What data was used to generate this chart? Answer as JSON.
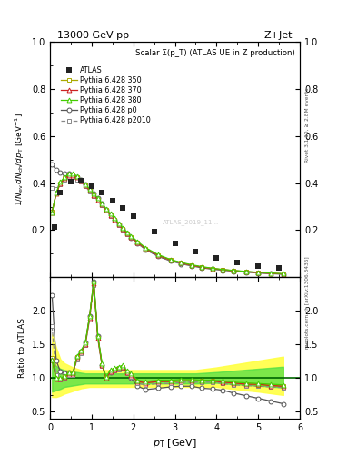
{
  "title_top": "13000 GeV pp",
  "title_right": "Z+Jet",
  "plot_title": "Scalar Σ(p_T) (ATLAS UE in Z production)",
  "rivet_label": "Rivet 3.1.10, ≥ 2.8M events",
  "mcplots_label": "mcplots.cern.ch [arXiv:1306.3436]",
  "xlim": [
    0,
    6
  ],
  "ylim_main": [
    0.0,
    1.0
  ],
  "ylim_ratio": [
    0.4,
    2.5
  ],
  "yticks_main": [
    0.2,
    0.4,
    0.6,
    0.8,
    1.0
  ],
  "yticks_ratio": [
    0.5,
    1.0,
    1.5,
    2.0
  ],
  "pt_atlas": [
    0.1,
    0.25,
    0.5,
    0.75,
    1.0,
    1.25,
    1.5,
    1.75,
    2.0,
    2.5,
    3.0,
    3.5,
    4.0,
    4.5,
    5.0,
    5.5
  ],
  "val_atlas": [
    0.215,
    0.36,
    0.405,
    0.41,
    0.385,
    0.36,
    0.325,
    0.295,
    0.258,
    0.195,
    0.145,
    0.108,
    0.082,
    0.062,
    0.048,
    0.038
  ],
  "pt_mc": [
    0.05,
    0.15,
    0.25,
    0.35,
    0.45,
    0.55,
    0.65,
    0.75,
    0.85,
    0.95,
    1.05,
    1.15,
    1.25,
    1.35,
    1.45,
    1.55,
    1.65,
    1.75,
    1.85,
    1.95,
    2.1,
    2.3,
    2.6,
    2.9,
    3.15,
    3.4,
    3.65,
    3.9,
    4.15,
    4.4,
    4.7,
    5.0,
    5.3,
    5.6
  ],
  "val_350": [
    0.28,
    0.355,
    0.4,
    0.42,
    0.435,
    0.435,
    0.425,
    0.41,
    0.39,
    0.37,
    0.35,
    0.33,
    0.31,
    0.285,
    0.265,
    0.245,
    0.225,
    0.205,
    0.187,
    0.17,
    0.148,
    0.122,
    0.093,
    0.073,
    0.061,
    0.051,
    0.043,
    0.037,
    0.032,
    0.028,
    0.024,
    0.02,
    0.017,
    0.014
  ],
  "val_370": [
    0.275,
    0.355,
    0.4,
    0.42,
    0.435,
    0.435,
    0.425,
    0.41,
    0.39,
    0.37,
    0.35,
    0.33,
    0.31,
    0.285,
    0.265,
    0.245,
    0.225,
    0.205,
    0.187,
    0.17,
    0.148,
    0.122,
    0.093,
    0.073,
    0.061,
    0.051,
    0.043,
    0.037,
    0.032,
    0.028,
    0.024,
    0.02,
    0.017,
    0.014
  ],
  "val_380": [
    0.275,
    0.36,
    0.405,
    0.425,
    0.44,
    0.44,
    0.43,
    0.415,
    0.395,
    0.375,
    0.355,
    0.335,
    0.315,
    0.29,
    0.27,
    0.25,
    0.23,
    0.21,
    0.192,
    0.175,
    0.152,
    0.125,
    0.096,
    0.075,
    0.063,
    0.053,
    0.045,
    0.038,
    0.033,
    0.029,
    0.025,
    0.021,
    0.018,
    0.015
  ],
  "val_p0": [
    0.48,
    0.455,
    0.445,
    0.44,
    0.44,
    0.435,
    0.425,
    0.415,
    0.395,
    0.375,
    0.355,
    0.335,
    0.312,
    0.288,
    0.266,
    0.245,
    0.224,
    0.204,
    0.185,
    0.167,
    0.144,
    0.117,
    0.088,
    0.069,
    0.057,
    0.048,
    0.04,
    0.034,
    0.03,
    0.026,
    0.022,
    0.018,
    0.015,
    0.013
  ],
  "val_p2010": [
    0.38,
    0.375,
    0.395,
    0.415,
    0.425,
    0.425,
    0.415,
    0.405,
    0.385,
    0.365,
    0.346,
    0.326,
    0.305,
    0.282,
    0.261,
    0.241,
    0.221,
    0.202,
    0.183,
    0.166,
    0.144,
    0.118,
    0.09,
    0.071,
    0.059,
    0.05,
    0.042,
    0.036,
    0.031,
    0.027,
    0.023,
    0.019,
    0.016,
    0.014
  ],
  "ratio_350": [
    1.3,
    0.99,
    0.99,
    1.02,
    1.07,
    1.07,
    1.31,
    1.39,
    1.51,
    1.9,
    2.41,
    1.6,
    1.2,
    1.0,
    1.1,
    1.13,
    1.15,
    1.17,
    1.09,
    1.05,
    0.95,
    0.93,
    0.95,
    0.95,
    0.96,
    0.96,
    0.96,
    0.96,
    0.94,
    0.92,
    0.91,
    0.9,
    0.89,
    0.88
  ],
  "ratio_370": [
    1.28,
    0.99,
    0.99,
    1.02,
    1.07,
    1.07,
    1.31,
    1.39,
    1.51,
    1.9,
    2.41,
    1.6,
    1.2,
    1.0,
    1.1,
    1.13,
    1.15,
    1.17,
    1.09,
    1.05,
    0.95,
    0.93,
    0.95,
    0.95,
    0.96,
    0.96,
    0.96,
    0.96,
    0.94,
    0.93,
    0.91,
    0.91,
    0.89,
    0.88
  ],
  "ratio_380": [
    1.28,
    1.0,
    1.0,
    1.03,
    1.08,
    1.08,
    1.33,
    1.41,
    1.53,
    1.92,
    2.44,
    1.62,
    1.22,
    1.02,
    1.12,
    1.15,
    1.17,
    1.19,
    1.11,
    1.07,
    0.97,
    0.95,
    0.97,
    0.97,
    0.98,
    0.98,
    0.97,
    0.97,
    0.96,
    0.94,
    0.93,
    0.92,
    0.91,
    0.9
  ],
  "ratio_p0": [
    2.23,
    1.26,
    1.1,
    1.07,
    1.08,
    1.07,
    1.31,
    1.4,
    1.53,
    1.92,
    2.44,
    1.62,
    1.2,
    1.0,
    1.08,
    1.12,
    1.14,
    1.16,
    1.08,
    1.0,
    0.88,
    0.83,
    0.85,
    0.87,
    0.88,
    0.88,
    0.85,
    0.84,
    0.82,
    0.78,
    0.74,
    0.7,
    0.66,
    0.62
  ],
  "ratio_p2010": [
    1.77,
    1.04,
    0.98,
    1.01,
    1.05,
    1.05,
    1.28,
    1.37,
    1.49,
    1.87,
    2.38,
    1.58,
    1.18,
    0.99,
    1.08,
    1.11,
    1.13,
    1.15,
    1.07,
    1.02,
    0.92,
    0.9,
    0.92,
    0.92,
    0.94,
    0.94,
    0.94,
    0.94,
    0.92,
    0.9,
    0.89,
    0.88,
    0.87,
    0.86
  ],
  "color_atlas": "#222222",
  "color_350": "#aaaa00",
  "color_370": "#cc2222",
  "color_380": "#44cc00",
  "color_p0": "#555555",
  "color_p2010": "#888888",
  "band_pt": [
    0.05,
    0.15,
    0.25,
    0.35,
    0.45,
    0.55,
    0.65,
    0.75,
    0.85,
    0.95,
    1.05,
    1.5,
    2.0,
    2.5,
    3.0,
    3.5,
    4.0,
    4.4,
    5.0,
    5.6
  ],
  "band_yellow_lo": [
    0.72,
    0.72,
    0.74,
    0.77,
    0.79,
    0.81,
    0.83,
    0.85,
    0.86,
    0.87,
    0.87,
    0.87,
    0.87,
    0.87,
    0.87,
    0.87,
    0.87,
    0.84,
    0.8,
    0.75
  ],
  "band_yellow_hi": [
    1.65,
    1.45,
    1.28,
    1.22,
    1.19,
    1.16,
    1.14,
    1.12,
    1.12,
    1.12,
    1.12,
    1.12,
    1.12,
    1.12,
    1.12,
    1.12,
    1.16,
    1.2,
    1.26,
    1.32
  ],
  "band_green_lo": [
    0.8,
    0.82,
    0.84,
    0.87,
    0.88,
    0.89,
    0.9,
    0.91,
    0.92,
    0.92,
    0.92,
    0.92,
    0.92,
    0.92,
    0.92,
    0.92,
    0.93,
    0.91,
    0.89,
    0.86
  ],
  "band_green_hi": [
    1.25,
    1.18,
    1.14,
    1.12,
    1.11,
    1.1,
    1.09,
    1.08,
    1.07,
    1.07,
    1.07,
    1.07,
    1.07,
    1.07,
    1.07,
    1.07,
    1.09,
    1.11,
    1.14,
    1.17
  ]
}
